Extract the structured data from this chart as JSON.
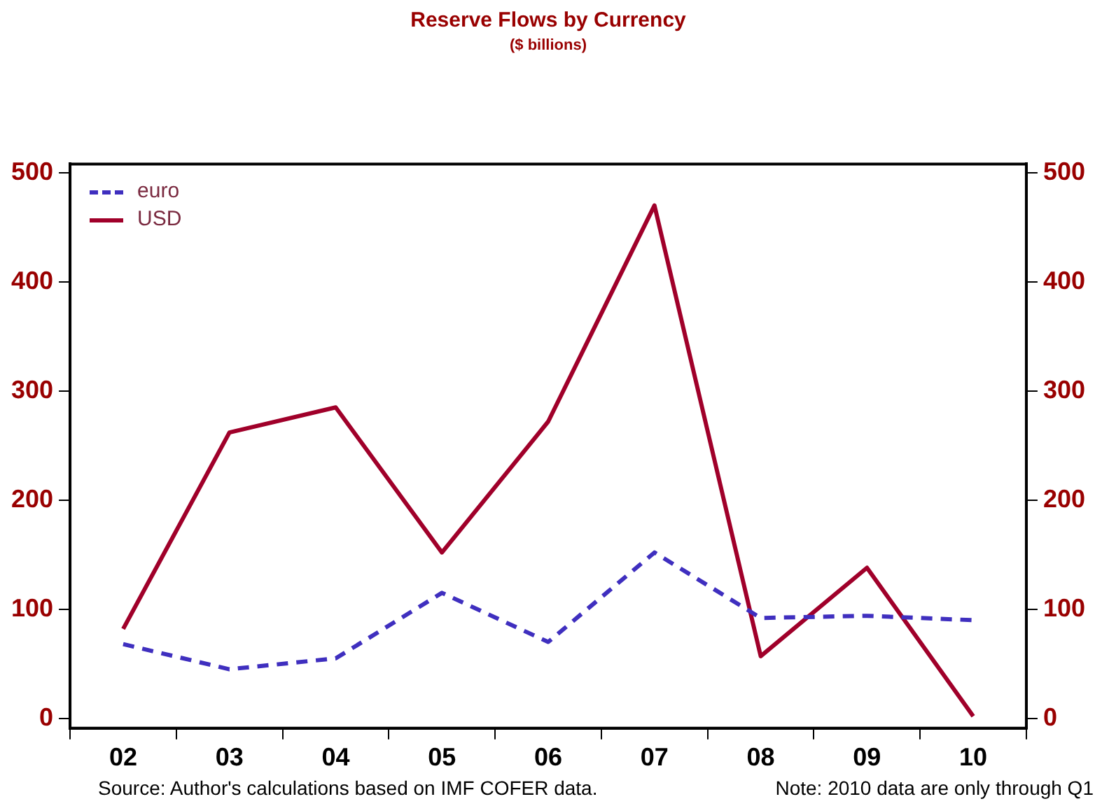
{
  "chart_data": {
    "type": "line",
    "title": "Reserve Flows by Currency",
    "subtitle": "($ billions)",
    "categories": [
      "02",
      "03",
      "04",
      "05",
      "06",
      "07",
      "08",
      "09",
      "10"
    ],
    "series": [
      {
        "name": "euro",
        "color": "#3f2fbf",
        "line_style": "dashed",
        "values": [
          68,
          45,
          55,
          115,
          70,
          152,
          92,
          94,
          90
        ]
      },
      {
        "name": "USD",
        "color": "#a0002a",
        "line_style": "solid",
        "values": [
          82,
          262,
          285,
          152,
          272,
          470,
          57,
          138,
          2
        ]
      }
    ],
    "ylim": [
      -9,
      508
    ],
    "yticks": [
      0,
      100,
      200,
      300,
      400,
      500
    ],
    "y2lim": [
      -9,
      508
    ],
    "y2ticks": [
      0,
      100,
      200,
      300,
      400,
      500
    ],
    "grid": false,
    "legend": "top left",
    "marker": "none",
    "annotations": [
      "Source: Author's calculations based on IMF COFER data.",
      "Note: 2010 data are only through Q1"
    ]
  }
}
